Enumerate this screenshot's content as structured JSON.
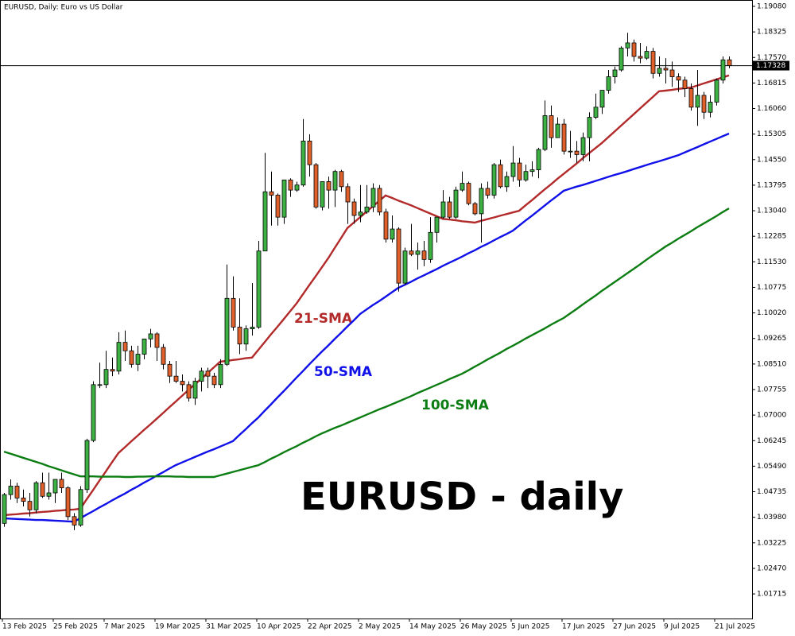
{
  "chart_data": {
    "type": "candlestick",
    "title": "EURUSD, Daily:  Euro vs US Dollar",
    "annotation": "EURUSD - daily",
    "up_color": "#3cb043",
    "down_color": "#e0602a",
    "current_price": 1.17328,
    "ylim": [
      1.00988,
      1.19268
    ],
    "yticks": [
      {
        "value": 1.1908,
        "label": "1.19080"
      },
      {
        "value": 1.18325,
        "label": "1.18325"
      },
      {
        "value": 1.1757,
        "label": "1.17570"
      },
      {
        "value": 1.16815,
        "label": "1.16815"
      },
      {
        "value": 1.1606,
        "label": "1.16060"
      },
      {
        "value": 1.15305,
        "label": "1.15305"
      },
      {
        "value": 1.1455,
        "label": "1.14550"
      },
      {
        "value": 1.13795,
        "label": "1.13795"
      },
      {
        "value": 1.1304,
        "label": "1.13040"
      },
      {
        "value": 1.12285,
        "label": "1.12285"
      },
      {
        "value": 1.1153,
        "label": "1.11530"
      },
      {
        "value": 1.10775,
        "label": "1.10775"
      },
      {
        "value": 1.1002,
        "label": "1.10020"
      },
      {
        "value": 1.09265,
        "label": "1.09265"
      },
      {
        "value": 1.0851,
        "label": "1.08510"
      },
      {
        "value": 1.07755,
        "label": "1.07755"
      },
      {
        "value": 1.07,
        "label": "1.07000"
      },
      {
        "value": 1.06245,
        "label": "1.06245"
      },
      {
        "value": 1.0549,
        "label": "1.05490"
      },
      {
        "value": 1.04735,
        "label": "1.04735"
      },
      {
        "value": 1.0398,
        "label": "1.03980"
      },
      {
        "value": 1.03225,
        "label": "1.03225"
      },
      {
        "value": 1.0247,
        "label": "1.02470"
      },
      {
        "value": 1.01715,
        "label": "1.01715"
      }
    ],
    "categories": [
      "13 Feb 2025",
      null,
      null,
      null,
      null,
      null,
      null,
      null,
      "25 Feb 2025",
      null,
      null,
      null,
      null,
      null,
      null,
      null,
      "7 Mar 2025",
      null,
      null,
      null,
      null,
      null,
      null,
      null,
      "19 Mar 2025",
      null,
      null,
      null,
      null,
      null,
      null,
      null,
      "31 Mar 2025",
      null,
      null,
      null,
      null,
      null,
      null,
      null,
      "10 Apr 2025",
      null,
      null,
      null,
      null,
      null,
      null,
      null,
      "22 Apr 2025",
      null,
      null,
      null,
      null,
      null,
      null,
      null,
      "2 May 2025",
      null,
      null,
      null,
      null,
      null,
      null,
      null,
      "14 May 2025",
      null,
      null,
      null,
      null,
      null,
      null,
      null,
      "26 May 2025",
      null,
      null,
      null,
      null,
      null,
      null,
      null,
      "5 Jun 2025",
      null,
      null,
      null,
      null,
      null,
      null,
      null,
      "17 Jun 2025",
      null,
      null,
      null,
      null,
      null,
      null,
      null,
      "27 Jun 2025",
      null,
      null,
      null,
      null,
      null,
      null,
      null,
      "9 Jul 2025",
      null,
      null,
      null,
      null,
      null,
      null,
      null,
      "21 Jul 2025",
      null,
      null
    ],
    "ohlc": [
      [
        1.038,
        1.047,
        1.037,
        1.0465
      ],
      [
        1.0465,
        1.051,
        1.045,
        1.049
      ],
      [
        1.049,
        1.05,
        1.044,
        1.0455
      ],
      [
        1.0455,
        1.048,
        1.043,
        1.0445
      ],
      [
        1.0445,
        1.047,
        1.04,
        1.042
      ],
      [
        1.042,
        1.0505,
        1.041,
        1.05
      ],
      [
        1.05,
        1.053,
        1.0455,
        1.046
      ],
      [
        1.046,
        1.053,
        1.045,
        1.047
      ],
      [
        1.047,
        1.051,
        1.044,
        1.051
      ],
      [
        1.051,
        1.053,
        1.047,
        1.0485
      ],
      [
        1.0485,
        1.049,
        1.039,
        1.04
      ],
      [
        1.04,
        1.041,
        1.036,
        1.0375
      ],
      [
        1.0375,
        1.049,
        1.037,
        1.048
      ],
      [
        1.048,
        1.063,
        1.047,
        1.0625
      ],
      [
        1.0625,
        1.08,
        1.062,
        1.079
      ],
      [
        1.079,
        1.0855,
        1.078,
        1.079
      ],
      [
        1.079,
        1.089,
        1.078,
        1.0835
      ],
      [
        1.0835,
        1.087,
        1.0815,
        1.083
      ],
      [
        1.083,
        1.0945,
        1.082,
        1.0915
      ],
      [
        1.0915,
        1.095,
        1.086,
        1.089
      ],
      [
        1.089,
        1.0905,
        1.084,
        1.085
      ],
      [
        1.085,
        1.0905,
        1.083,
        1.088
      ],
      [
        1.088,
        1.0925,
        1.0865,
        1.0925
      ],
      [
        1.0925,
        1.0955,
        1.09,
        1.094
      ],
      [
        1.094,
        1.0945,
        1.086,
        1.09
      ],
      [
        1.09,
        1.091,
        1.0835,
        1.085
      ],
      [
        1.085,
        1.086,
        1.0795,
        1.0815
      ],
      [
        1.0815,
        1.086,
        1.0795,
        1.08
      ],
      [
        1.08,
        1.082,
        1.077,
        1.079
      ],
      [
        1.079,
        1.08,
        1.074,
        1.075
      ],
      [
        1.075,
        1.081,
        1.073,
        1.08
      ],
      [
        1.08,
        1.084,
        1.077,
        1.083
      ],
      [
        1.083,
        1.084,
        1.078,
        1.0815
      ],
      [
        1.0815,
        1.0825,
        1.078,
        1.079
      ],
      [
        1.079,
        1.0865,
        1.078,
        1.085
      ],
      [
        1.085,
        1.1145,
        1.0845,
        1.1045
      ],
      [
        1.1045,
        1.111,
        1.095,
        1.096
      ],
      [
        1.096,
        1.1045,
        1.088,
        1.091
      ],
      [
        1.091,
        1.0965,
        1.089,
        1.0955
      ],
      [
        1.0955,
        1.109,
        1.0935,
        1.096
      ],
      [
        1.096,
        1.1215,
        1.0955,
        1.1185
      ],
      [
        1.1185,
        1.1475,
        1.1185,
        1.136
      ],
      [
        1.136,
        1.142,
        1.126,
        1.135
      ],
      [
        1.135,
        1.1355,
        1.126,
        1.1285
      ],
      [
        1.1285,
        1.1395,
        1.1265,
        1.1395
      ],
      [
        1.1395,
        1.14,
        1.1345,
        1.1365
      ],
      [
        1.1365,
        1.139,
        1.136,
        1.138
      ],
      [
        1.138,
        1.1575,
        1.1375,
        1.151
      ],
      [
        1.151,
        1.153,
        1.1405,
        1.144
      ],
      [
        1.144,
        1.1445,
        1.131,
        1.1315
      ],
      [
        1.1315,
        1.1385,
        1.1305,
        1.139
      ],
      [
        1.139,
        1.1405,
        1.131,
        1.1365
      ],
      [
        1.1365,
        1.1425,
        1.1315,
        1.142
      ],
      [
        1.142,
        1.1425,
        1.136,
        1.1375
      ],
      [
        1.1375,
        1.1385,
        1.1265,
        1.133
      ],
      [
        1.133,
        1.134,
        1.1265,
        1.129
      ],
      [
        1.129,
        1.138,
        1.127,
        1.13
      ],
      [
        1.13,
        1.138,
        1.1295,
        1.1315
      ],
      [
        1.1315,
        1.1385,
        1.13,
        1.137
      ],
      [
        1.137,
        1.138,
        1.129,
        1.13
      ],
      [
        1.13,
        1.131,
        1.121,
        1.122
      ],
      [
        1.122,
        1.129,
        1.121,
        1.125
      ],
      [
        1.125,
        1.1255,
        1.1065,
        1.109
      ],
      [
        1.109,
        1.1195,
        1.1085,
        1.1185
      ],
      [
        1.1185,
        1.1265,
        1.117,
        1.1175
      ],
      [
        1.1175,
        1.121,
        1.113,
        1.1185
      ],
      [
        1.1185,
        1.1215,
        1.114,
        1.116
      ],
      [
        1.116,
        1.1285,
        1.115,
        1.124
      ],
      [
        1.124,
        1.1285,
        1.121,
        1.1285
      ],
      [
        1.1285,
        1.1365,
        1.128,
        1.133
      ],
      [
        1.133,
        1.1345,
        1.128,
        1.1285
      ],
      [
        1.1285,
        1.1375,
        1.128,
        1.1365
      ],
      [
        1.1365,
        1.142,
        1.136,
        1.1385
      ],
      [
        1.1385,
        1.139,
        1.132,
        1.1325
      ],
      [
        1.1325,
        1.133,
        1.129,
        1.1295
      ],
      [
        1.1295,
        1.1385,
        1.121,
        1.137
      ],
      [
        1.137,
        1.139,
        1.134,
        1.135
      ],
      [
        1.135,
        1.1445,
        1.134,
        1.144
      ],
      [
        1.144,
        1.1455,
        1.137,
        1.1375
      ],
      [
        1.1375,
        1.142,
        1.136,
        1.1405
      ],
      [
        1.1405,
        1.1495,
        1.139,
        1.1445
      ],
      [
        1.1445,
        1.146,
        1.1375,
        1.1395
      ],
      [
        1.1395,
        1.144,
        1.139,
        1.142
      ],
      [
        1.142,
        1.145,
        1.1405,
        1.1425
      ],
      [
        1.1425,
        1.149,
        1.14,
        1.1485
      ],
      [
        1.1485,
        1.163,
        1.148,
        1.1585
      ],
      [
        1.1585,
        1.1615,
        1.149,
        1.152
      ],
      [
        1.152,
        1.158,
        1.152,
        1.156
      ],
      [
        1.156,
        1.1575,
        1.147,
        1.148
      ],
      [
        1.148,
        1.154,
        1.146,
        1.148
      ],
      [
        1.148,
        1.151,
        1.1445,
        1.147
      ],
      [
        1.147,
        1.1535,
        1.145,
        1.152
      ],
      [
        1.152,
        1.1595,
        1.145,
        1.158
      ],
      [
        1.158,
        1.165,
        1.1575,
        1.161
      ],
      [
        1.161,
        1.166,
        1.159,
        1.166
      ],
      [
        1.166,
        1.172,
        1.165,
        1.17
      ],
      [
        1.17,
        1.173,
        1.168,
        1.172
      ],
      [
        1.172,
        1.179,
        1.1715,
        1.1785
      ],
      [
        1.1785,
        1.183,
        1.176,
        1.18
      ],
      [
        1.18,
        1.181,
        1.1745,
        1.176
      ],
      [
        1.176,
        1.18,
        1.174,
        1.1755
      ],
      [
        1.1755,
        1.179,
        1.175,
        1.1775
      ],
      [
        1.1775,
        1.1785,
        1.1695,
        1.171
      ],
      [
        1.171,
        1.176,
        1.17,
        1.1725
      ],
      [
        1.1725,
        1.1755,
        1.168,
        1.172
      ],
      [
        1.172,
        1.1745,
        1.167,
        1.17
      ],
      [
        1.17,
        1.171,
        1.1655,
        1.169
      ],
      [
        1.169,
        1.17,
        1.164,
        1.1665
      ],
      [
        1.1665,
        1.168,
        1.16,
        1.161
      ],
      [
        1.161,
        1.172,
        1.1555,
        1.1645
      ],
      [
        1.1645,
        1.1655,
        1.1575,
        1.1595
      ],
      [
        1.1595,
        1.1645,
        1.158,
        1.1625
      ],
      [
        1.1625,
        1.1695,
        1.1615,
        1.169
      ],
      [
        1.169,
        1.176,
        1.168,
        1.175
      ],
      [
        1.175,
        1.176,
        1.1725,
        1.1733
      ]
    ],
    "series": [
      {
        "name": "21-SMA",
        "color": "#b22a2a",
        "values": [
          1.0404,
          1.0406,
          1.0407,
          1.0409,
          1.041,
          1.0412,
          1.0414,
          1.0415,
          1.0417,
          1.0418,
          1.042,
          1.0421,
          1.0423,
          1.0451,
          1.0478,
          1.0506,
          1.0533,
          1.0561,
          1.0588,
          1.0605,
          1.0622,
          1.0639,
          1.0656,
          1.0672,
          1.0689,
          1.0706,
          1.0723,
          1.074,
          1.0757,
          1.0774,
          1.0791,
          1.0807,
          1.0824,
          1.0841,
          1.0858,
          1.086,
          1.0863,
          1.0865,
          1.0868,
          1.087,
          1.0893,
          1.0916,
          1.0939,
          1.0961,
          1.0984,
          1.1007,
          1.103,
          1.1057,
          1.1084,
          1.111,
          1.1137,
          1.1164,
          1.1194,
          1.1223,
          1.1253,
          1.1269,
          1.1285,
          1.1301,
          1.1317,
          1.1333,
          1.1349,
          1.1342,
          1.1334,
          1.1327,
          1.132,
          1.1312,
          1.1304,
          1.1296,
          1.1288,
          1.128,
          1.1278,
          1.1276,
          1.1273,
          1.1271,
          1.1269,
          1.1274,
          1.1279,
          1.1284,
          1.1289,
          1.1294,
          1.1299,
          1.1304,
          1.132,
          1.1335,
          1.1351,
          1.1367,
          1.1382,
          1.1398,
          1.1413,
          1.1428,
          1.1443,
          1.1459,
          1.1474,
          1.1489,
          1.1504,
          1.1521,
          1.1538,
          1.1555,
          1.1572,
          1.1589,
          1.1606,
          1.1623,
          1.164,
          1.1657,
          1.1659,
          1.1661,
          1.1664,
          1.1666,
          1.1668,
          1.1674,
          1.168,
          1.1686,
          1.1692,
          1.1698,
          1.1704
        ]
      },
      {
        "name": "50-SMA",
        "color": "#1010e8",
        "values": [
          1.0395,
          1.0394,
          1.0393,
          1.0392,
          1.0391,
          1.039,
          1.039,
          1.0389,
          1.0388,
          1.0387,
          1.0386,
          1.0385,
          1.0395,
          1.0406,
          1.0416,
          1.0427,
          1.0437,
          1.0448,
          1.0458,
          1.0468,
          1.0479,
          1.0489,
          1.05,
          1.051,
          1.0521,
          1.0531,
          1.0542,
          1.0552,
          1.056,
          1.0568,
          1.0576,
          1.0584,
          1.0592,
          1.0599,
          1.0607,
          1.0615,
          1.0623,
          1.0641,
          1.0658,
          1.0676,
          1.0693,
          1.0713,
          1.0732,
          1.0752,
          1.0771,
          1.0791,
          1.0811,
          1.083,
          1.085,
          1.0869,
          1.0888,
          1.0906,
          1.0925,
          1.0943,
          1.0962,
          1.098,
          1.0999,
          1.1012,
          1.1025,
          1.1037,
          1.105,
          1.1063,
          1.1076,
          1.1085,
          1.1094,
          1.1104,
          1.1113,
          1.1122,
          1.1131,
          1.1141,
          1.115,
          1.1159,
          1.1168,
          1.1178,
          1.1187,
          1.1197,
          1.1206,
          1.1216,
          1.1226,
          1.1235,
          1.1245,
          1.126,
          1.1275,
          1.1289,
          1.1304,
          1.1319,
          1.1334,
          1.1348,
          1.1363,
          1.1369,
          1.1375,
          1.138,
          1.1386,
          1.1392,
          1.1398,
          1.1404,
          1.141,
          1.1415,
          1.1421,
          1.1427,
          1.1433,
          1.1439,
          1.1445,
          1.145,
          1.1456,
          1.1462,
          1.1468,
          1.1476,
          1.1484,
          1.1492,
          1.15,
          1.1508,
          1.1516,
          1.1524,
          1.1532
        ]
      },
      {
        "name": "100-SMA",
        "color": "#0b7d12",
        "values": [
          1.0592,
          1.0586,
          1.058,
          1.0574,
          1.0568,
          1.0562,
          1.0556,
          1.0549,
          1.0543,
          1.0537,
          1.0531,
          1.0525,
          1.0519,
          1.0519,
          1.0519,
          1.0518,
          1.0518,
          1.0518,
          1.0518,
          1.0517,
          1.0517,
          1.0518,
          1.0518,
          1.0519,
          1.0519,
          1.0519,
          1.0519,
          1.0518,
          1.0518,
          1.0517,
          1.0517,
          1.0517,
          1.0517,
          1.0517,
          1.0522,
          1.0527,
          1.0532,
          1.0537,
          1.0542,
          1.0547,
          1.0552,
          1.0561,
          1.0571,
          1.058,
          1.059,
          1.0599,
          1.0608,
          1.0618,
          1.0627,
          1.0637,
          1.0646,
          1.0654,
          1.0662,
          1.0669,
          1.0677,
          1.0685,
          1.0693,
          1.0701,
          1.0709,
          1.0717,
          1.0724,
          1.0732,
          1.074,
          1.0748,
          1.0756,
          1.0765,
          1.0773,
          1.0781,
          1.0789,
          1.0797,
          1.0806,
          1.0814,
          1.0822,
          1.0832,
          1.0843,
          1.0853,
          1.0864,
          1.0874,
          1.0884,
          1.0895,
          1.0905,
          1.0915,
          1.0926,
          1.0936,
          1.0946,
          1.0956,
          1.0967,
          1.0977,
          1.0987,
          1.1,
          1.1013,
          1.1027,
          1.104,
          1.1053,
          1.1067,
          1.108,
          1.1093,
          1.1106,
          1.1119,
          1.1132,
          1.1145,
          1.1159,
          1.1172,
          1.1185,
          1.1198,
          1.1209,
          1.1221,
          1.1232,
          1.1243,
          1.1255,
          1.1266,
          1.1277,
          1.1288,
          1.13,
          1.1311
        ]
      }
    ]
  }
}
